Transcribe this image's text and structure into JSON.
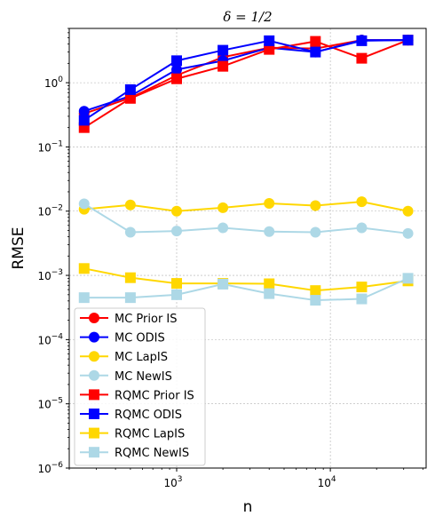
{
  "chart_data": {
    "type": "line",
    "title": "δ = 1/2",
    "xlabel": "n",
    "ylabel": "RMSE",
    "xscale": "log",
    "yscale": "log",
    "xlim": [
      200,
      42000
    ],
    "ylim": [
      1e-06,
      7
    ],
    "grid": true,
    "legend_position": "lower-left",
    "x": [
      250,
      500,
      1000,
      2000,
      4000,
      8000,
      16000,
      32000
    ],
    "x_tick_labels": [
      {
        "value": 1000,
        "base": "10",
        "exp": "3"
      },
      {
        "value": 10000,
        "base": "10",
        "exp": "4"
      }
    ],
    "y_tick_labels": [
      {
        "value": 1e-06,
        "base": "10",
        "exp": "−6"
      },
      {
        "value": 1e-05,
        "base": "10",
        "exp": "−5"
      },
      {
        "value": 0.0001,
        "base": "10",
        "exp": "−4"
      },
      {
        "value": 0.001,
        "base": "10",
        "exp": "−3"
      },
      {
        "value": 0.01,
        "base": "10",
        "exp": "−2"
      },
      {
        "value": 0.1,
        "base": "10",
        "exp": "−1"
      },
      {
        "value": 1,
        "base": "10",
        "exp": "0"
      }
    ],
    "series": [
      {
        "name": "MC Prior IS",
        "color": "#ff0000",
        "marker": "circle",
        "values": [
          0.33,
          0.58,
          1.3,
          2.5,
          3.5,
          3.4,
          4.6,
          4.6
        ]
      },
      {
        "name": "MC ODIS",
        "color": "#0000ff",
        "marker": "circle",
        "values": [
          0.36,
          0.62,
          1.6,
          2.2,
          3.5,
          3.0,
          4.6,
          4.6
        ]
      },
      {
        "name": "MC LapIS",
        "color": "#ffd700",
        "marker": "circle",
        "values": [
          0.0107,
          0.0125,
          0.01,
          0.0113,
          0.0132,
          0.0122,
          0.014,
          0.01
        ]
      },
      {
        "name": "MC NewIS",
        "color": "#add8e6",
        "marker": "circle",
        "values": [
          0.013,
          0.0047,
          0.0049,
          0.0055,
          0.0048,
          0.0047,
          0.0055,
          0.0045
        ]
      },
      {
        "name": "RQMC Prior IS",
        "color": "#ff0000",
        "marker": "square",
        "values": [
          0.2,
          0.57,
          1.15,
          1.8,
          3.3,
          4.4,
          2.4,
          4.6
        ]
      },
      {
        "name": "RQMC ODIS",
        "color": "#0000ff",
        "marker": "square",
        "values": [
          0.26,
          0.78,
          2.2,
          3.2,
          4.5,
          3.0,
          4.5,
          4.6
        ]
      },
      {
        "name": "RQMC LapIS",
        "color": "#ffd700",
        "marker": "square",
        "values": [
          0.00128,
          0.00092,
          0.00075,
          0.00075,
          0.00074,
          0.00058,
          0.00066,
          0.00082
        ]
      },
      {
        "name": "RQMC NewIS",
        "color": "#add8e6",
        "marker": "square",
        "values": [
          0.00045,
          0.00045,
          0.0005,
          0.00073,
          0.00052,
          0.00041,
          0.00043,
          0.0009
        ]
      }
    ]
  }
}
